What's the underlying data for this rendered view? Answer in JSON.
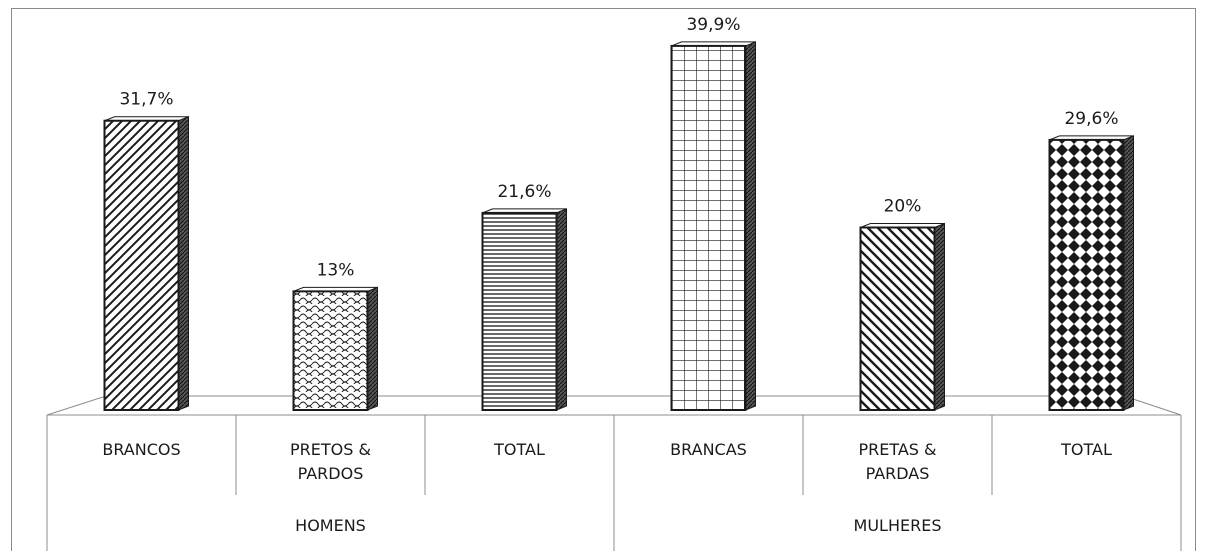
{
  "chart_data": {
    "type": "bar",
    "groups": [
      {
        "label": "HOMENS",
        "categories": [
          "BRANCOS",
          [
            "PRETOS &",
            "PARDOS"
          ],
          "TOTAL"
        ]
      },
      {
        "label": "MULHERES",
        "categories": [
          "BRANCAS",
          [
            "PRETAS &",
            "PARDAS"
          ],
          "TOTAL"
        ]
      }
    ],
    "values": [
      31.7,
      13,
      21.6,
      39.9,
      20,
      29.6
    ],
    "data_labels": [
      "31,7%",
      "13%",
      "21,6%",
      "39,9%",
      "20%",
      "29,6%"
    ],
    "patterns": [
      "diagonal-up",
      "scale",
      "horizontal-lines",
      "grid",
      "diagonal-down",
      "diamond"
    ],
    "ylim": [
      0,
      40
    ],
    "grid": false,
    "legend": false,
    "colors": {
      "outline": "#1a1a1a",
      "fill": "#ffffff",
      "axis": "#8c8c8c"
    }
  }
}
